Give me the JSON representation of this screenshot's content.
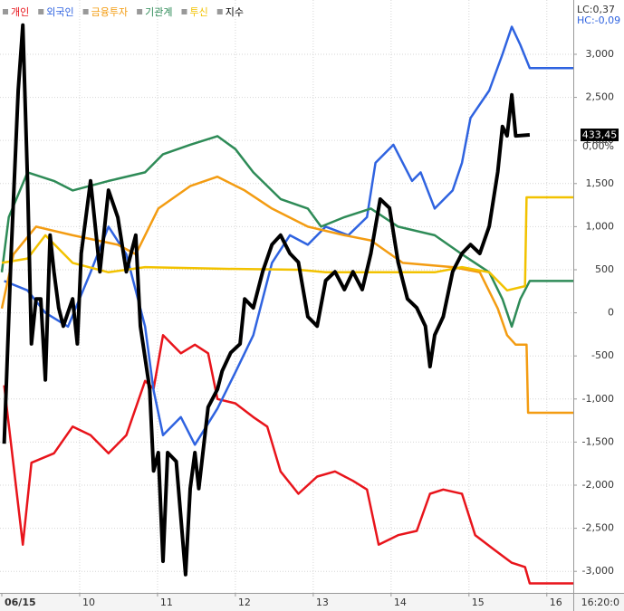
{
  "chart_data": {
    "type": "line",
    "legend": [
      "개인",
      "외국인",
      "금융투자",
      "기관계",
      "투신",
      "지수"
    ],
    "corner_labels": [
      "LC:0,37",
      "HC:-0,09"
    ],
    "time_label": "16:20:0",
    "index_change": "0,00%",
    "xlim": [
      0,
      7.34
    ],
    "xticks": [
      {
        "value": 0,
        "label": "06/15"
      },
      {
        "value": 1,
        "label": "10"
      },
      {
        "value": 2,
        "label": "11"
      },
      {
        "value": 3,
        "label": "12"
      },
      {
        "value": 4,
        "label": "13"
      },
      {
        "value": 5,
        "label": "14"
      },
      {
        "value": 6,
        "label": "15"
      },
      {
        "value": 7,
        "label": "16"
      }
    ],
    "ylim": [
      -3250,
      3630
    ],
    "yticks": [
      {
        "value": 3000,
        "label": "3,000"
      },
      {
        "value": 2500,
        "label": "2,500"
      },
      {
        "value": 2000,
        "label": "2,000"
      },
      {
        "value": 1500,
        "label": "1,500"
      },
      {
        "value": 1000,
        "label": "1,000"
      },
      500,
      0,
      -500,
      {
        "value": -1000,
        "label": "-1,000"
      },
      {
        "value": -1500,
        "label": "-1,500"
      },
      {
        "value": -2000,
        "label": "-2,000"
      },
      {
        "value": -2500,
        "label": "-2,500"
      },
      {
        "value": -3000,
        "label": "-3,000"
      }
    ],
    "y2lim": [
      424.18,
      436.18
    ],
    "grid": true,
    "series": [
      {
        "name": "개인",
        "color": "#e8141b",
        "x": [
          0.03,
          0.27,
          0.38,
          0.67,
          0.91,
          1.14,
          1.37,
          1.6,
          1.84,
          1.95,
          2.07,
          2.3,
          2.48,
          2.65,
          2.77,
          3.0,
          3.23,
          3.41,
          3.58,
          3.81,
          4.05,
          4.28,
          4.51,
          4.69,
          4.84,
          5.09,
          5.33,
          5.5,
          5.67,
          5.91,
          6.08,
          6.31,
          6.55,
          6.72,
          6.78,
          7.34
        ],
        "values": [
          -840,
          -2690,
          -1740,
          -1630,
          -1320,
          -1420,
          -1630,
          -1420,
          -790,
          -880,
          -260,
          -470,
          -370,
          -470,
          -1000,
          -1050,
          -1210,
          -1320,
          -1840,
          -2100,
          -1900,
          -1840,
          -1950,
          -2050,
          -2690,
          -2580,
          -2530,
          -2100,
          -2050,
          -2100,
          -2580,
          -2740,
          -2900,
          -2950,
          -3140,
          -3140
        ]
      },
      {
        "name": "외국인",
        "color": "#2f63e0",
        "x": [
          0.03,
          0.33,
          0.56,
          0.85,
          1.14,
          1.37,
          1.6,
          1.84,
          1.95,
          2.07,
          2.3,
          2.48,
          2.77,
          3.0,
          3.23,
          3.47,
          3.7,
          3.93,
          4.16,
          4.45,
          4.69,
          4.8,
          5.03,
          5.27,
          5.38,
          5.56,
          5.79,
          5.91,
          6.02,
          6.26,
          6.43,
          6.55,
          6.66,
          6.78,
          7.34
        ],
        "values": [
          370,
          260,
          0,
          -160,
          470,
          1000,
          680,
          -160,
          -900,
          -1420,
          -1210,
          -1530,
          -1110,
          -690,
          -260,
          580,
          900,
          790,
          1000,
          900,
          1110,
          1740,
          1950,
          1530,
          1630,
          1210,
          1420,
          1740,
          2260,
          2580,
          3000,
          3320,
          3110,
          2840,
          2840
        ]
      },
      {
        "name": "금융투자",
        "color": "#f39c12",
        "x": [
          0,
          0.15,
          0.44,
          0.91,
          1.49,
          1.72,
          2.01,
          2.42,
          2.77,
          3.12,
          3.47,
          3.93,
          4.4,
          4.74,
          5.15,
          5.79,
          6.14,
          6.37,
          6.49,
          6.6,
          6.74,
          6.76,
          7.34
        ],
        "values": [
          50,
          680,
          1000,
          900,
          790,
          680,
          1210,
          1470,
          1580,
          1420,
          1210,
          1000,
          900,
          840,
          580,
          530,
          470,
          50,
          -260,
          -370,
          -370,
          -1160,
          -1160
        ]
      },
      {
        "name": "기관계",
        "color": "#2e8b57",
        "x": [
          0,
          0.09,
          0.33,
          0.67,
          0.91,
          1.37,
          1.84,
          2.07,
          2.42,
          2.77,
          3.0,
          3.23,
          3.58,
          3.93,
          4.1,
          4.4,
          4.74,
          5.09,
          5.56,
          5.91,
          6.26,
          6.43,
          6.55,
          6.66,
          6.78,
          7.34
        ],
        "values": [
          470,
          1110,
          1630,
          1530,
          1420,
          1530,
          1630,
          1840,
          1950,
          2050,
          1900,
          1630,
          1320,
          1210,
          1000,
          1110,
          1210,
          1000,
          900,
          680,
          470,
          160,
          -160,
          160,
          370,
          370
        ]
      },
      {
        "name": "투신",
        "color": "#f2c200",
        "x": [
          0,
          0.33,
          0.56,
          0.91,
          1.37,
          1.84,
          2.88,
          3.81,
          4.16,
          5.56,
          5.91,
          6.26,
          6.49,
          6.72,
          6.74,
          7.34
        ],
        "values": [
          580,
          630,
          900,
          580,
          470,
          530,
          510,
          500,
          470,
          470,
          530,
          470,
          260,
          310,
          1340,
          1340
        ]
      },
      {
        "name": "지수",
        "color": "#000000",
        "axis": "y2",
        "x": [
          0.03,
          0.12,
          0.21,
          0.27,
          0.33,
          0.38,
          0.44,
          0.5,
          0.56,
          0.62,
          0.67,
          0.73,
          0.79,
          0.91,
          0.97,
          1.02,
          1.14,
          1.2,
          1.26,
          1.37,
          1.49,
          1.6,
          1.72,
          1.78,
          1.9,
          1.95,
          2.01,
          2.07,
          2.13,
          2.24,
          2.36,
          2.42,
          2.48,
          2.53,
          2.65,
          2.77,
          2.83,
          2.94,
          3.06,
          3.12,
          3.23,
          3.35,
          3.47,
          3.58,
          3.7,
          3.81,
          3.93,
          4.05,
          4.16,
          4.28,
          4.4,
          4.51,
          4.63,
          4.74,
          4.86,
          4.98,
          5.09,
          5.21,
          5.33,
          5.44,
          5.5,
          5.56,
          5.67,
          5.79,
          5.91,
          6.02,
          6.14,
          6.26,
          6.37,
          6.43,
          6.49,
          6.55,
          6.6,
          6.78
        ],
        "values": [
          427.2,
          431.05,
          434.35,
          435.67,
          432.52,
          429.22,
          430.13,
          430.13,
          428.49,
          431.42,
          430.68,
          429.95,
          429.58,
          430.13,
          429.22,
          431.05,
          432.52,
          431.6,
          430.68,
          432.33,
          431.78,
          430.68,
          431.42,
          429.58,
          428.3,
          426.65,
          427.02,
          424.82,
          427.02,
          426.84,
          424.55,
          426.29,
          427.02,
          426.29,
          427.94,
          428.3,
          428.67,
          429.04,
          429.22,
          430.13,
          429.95,
          430.68,
          431.23,
          431.42,
          431.05,
          430.87,
          429.77,
          429.58,
          430.5,
          430.68,
          430.32,
          430.68,
          430.32,
          431.05,
          432.15,
          431.97,
          430.87,
          430.13,
          429.95,
          429.58,
          428.76,
          429.4,
          429.77,
          430.68,
          431.05,
          431.23,
          431.05,
          431.6,
          432.7,
          433.62,
          433.43,
          434.26,
          433.43,
          433.45
        ],
        "value_labels": [
          null,
          null,
          null,
          null,
          null,
          null,
          null,
          null,
          null,
          null,
          null,
          null,
          null,
          null,
          null,
          null,
          null,
          null,
          null,
          null,
          null,
          null,
          null,
          null,
          null,
          null,
          null,
          null,
          null,
          null,
          null,
          null,
          null,
          null,
          null,
          null,
          null,
          null,
          null,
          null,
          null,
          null,
          null,
          null,
          null,
          null,
          null,
          null,
          null,
          null,
          null,
          null,
          null,
          null,
          null,
          null,
          null,
          null,
          null,
          null,
          null,
          null,
          null,
          null,
          null,
          null,
          null,
          null,
          null,
          null,
          null,
          null,
          null,
          "433,45"
        ]
      }
    ]
  }
}
